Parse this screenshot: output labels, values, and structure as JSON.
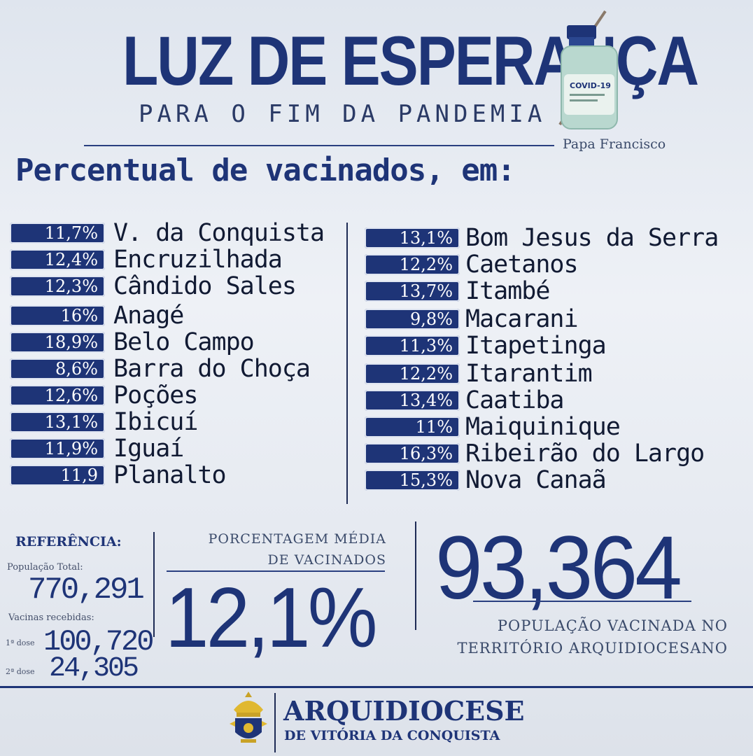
{
  "header": {
    "title": "LUZ DE ESPERANÇA",
    "subtitle": "PARA O FIM DA PANDEMIA",
    "attribution": "Papa Francisco",
    "vial_label": "COVID-19"
  },
  "section_heading": "Percentual de vacinados, em:",
  "left_column": [
    {
      "pct": "11,7%",
      "city": "V. da Conquista"
    },
    {
      "pct": "12,4%",
      "city": "Encruzilhada"
    },
    {
      "pct": "12,3%",
      "city": "Cândido Sales"
    },
    {
      "pct": "16%",
      "city": "Anagé"
    },
    {
      "pct": "18,9%",
      "city": "Belo Campo"
    },
    {
      "pct": "8,6%",
      "city": "Barra do Choça"
    },
    {
      "pct": "12,6%",
      "city": "Poções"
    },
    {
      "pct": "13,1%",
      "city": "Ibicuí"
    },
    {
      "pct": "11,9%",
      "city": "Iguaí"
    },
    {
      "pct": "11,9",
      "city": "Planalto"
    }
  ],
  "right_column": [
    {
      "pct": "13,1%",
      "city": "Bom Jesus da Serra"
    },
    {
      "pct": "12,2%",
      "city": "Caetanos"
    },
    {
      "pct": "13,7%",
      "city": "Itambé"
    },
    {
      "pct": "9,8%",
      "city": "Macarani"
    },
    {
      "pct": "11,3%",
      "city": "Itapetinga"
    },
    {
      "pct": "12,2%",
      "city": "Itarantim"
    },
    {
      "pct": "13,4%",
      "city": "Caatiba"
    },
    {
      "pct": "11%",
      "city": "Maiquinique"
    },
    {
      "pct": "16,3%",
      "city": "Ribeirão do Largo"
    },
    {
      "pct": "15,3%",
      "city": "Nova Canaã"
    }
  ],
  "reference": {
    "label": "REFERÊNCIA:",
    "population_label": "População Total:",
    "population_value": "770,291",
    "vaccines_label": "Vacinas recebidas:",
    "dose1_label": "1ª dose",
    "dose1_value": "100,720",
    "dose2_label": "2ª dose",
    "dose2_value": "24,305"
  },
  "average": {
    "label_line1": "PORCENTAGEM MÉDIA",
    "label_line2": "DE VACINADOS",
    "value": "12,1%"
  },
  "vaccinated": {
    "value": "93,364",
    "label_line1": "POPULAÇÃO VACINADA NO",
    "label_line2": "TERRITÓRIO ARQUIDIOCESANO"
  },
  "footer": {
    "org_name": "ARQUIDIOCESE",
    "org_sub": "DE VITÓRIA DA CONQUISTA"
  },
  "colors": {
    "primary": "#1e3477",
    "background": "#e6eaf1",
    "badge_text": "#ffffff"
  }
}
